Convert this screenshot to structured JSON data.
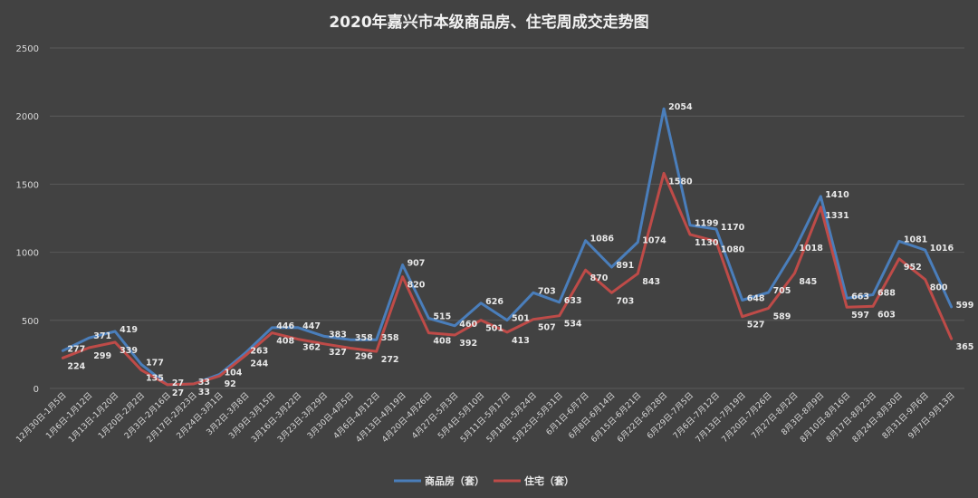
{
  "chart_data": {
    "type": "line",
    "title": "2020年嘉兴市本级商品房、住宅周成交走势图",
    "ylim": [
      0,
      2500
    ],
    "yticks": [
      0,
      500,
      1000,
      1500,
      2000,
      2500
    ],
    "grid": true,
    "legend_position": "bottom",
    "categories": [
      "12月30日-1月5日",
      "1月6日-1月12日",
      "1月13日-1月20日",
      "1月20日-2月2日",
      "2月3日-2月16日",
      "2月17日-2月23日",
      "2月24日-3月1日",
      "3月2日-3月8日",
      "3月9日-3月15日",
      "3月16日-3月22日",
      "3月23日-3月29日",
      "3月30日-4月5日",
      "4月6日-4月12日",
      "4月13日-4月19日",
      "4月20日-4月26日",
      "4月27日-5月3日",
      "5月4日-5月10日",
      "5月11日-5月17日",
      "5月18日-5月24日",
      "5月25日-5月31日",
      "6月1日-6月7日",
      "6月8日-6月14日",
      "6月15日-6月21日",
      "6月22日-6月28日",
      "6月29日-7月5日",
      "7月6日-7月12日",
      "7月13日-7月19日",
      "7月20日-7月26日",
      "7月27日-8月2日",
      "8月3日-8月9日",
      "8月10日-8月16日",
      "8月17日-8月23日",
      "8月24日-8月30日",
      "8月31日-9月6日",
      "9月7日-9月13日"
    ],
    "series": [
      {
        "name": "商品房（套）",
        "color": "#4a7ebb",
        "values": [
          277,
          371,
          419,
          177,
          27,
          33,
          104,
          263,
          446,
          447,
          383,
          358,
          358,
          907,
          515,
          460,
          626,
          501,
          703,
          633,
          1086,
          891,
          1074,
          2054,
          1199,
          1170,
          648,
          705,
          1018,
          1410,
          663,
          688,
          1081,
          1016,
          599
        ]
      },
      {
        "name": "住宅（套）",
        "color": "#be4b48",
        "values": [
          224,
          299,
          339,
          135,
          27,
          33,
          92,
          244,
          408,
          362,
          327,
          296,
          272,
          820,
          408,
          392,
          501,
          413,
          507,
          534,
          870,
          703,
          843,
          1580,
          1130,
          1080,
          527,
          589,
          845,
          1331,
          597,
          603,
          952,
          800,
          365
        ]
      }
    ]
  }
}
